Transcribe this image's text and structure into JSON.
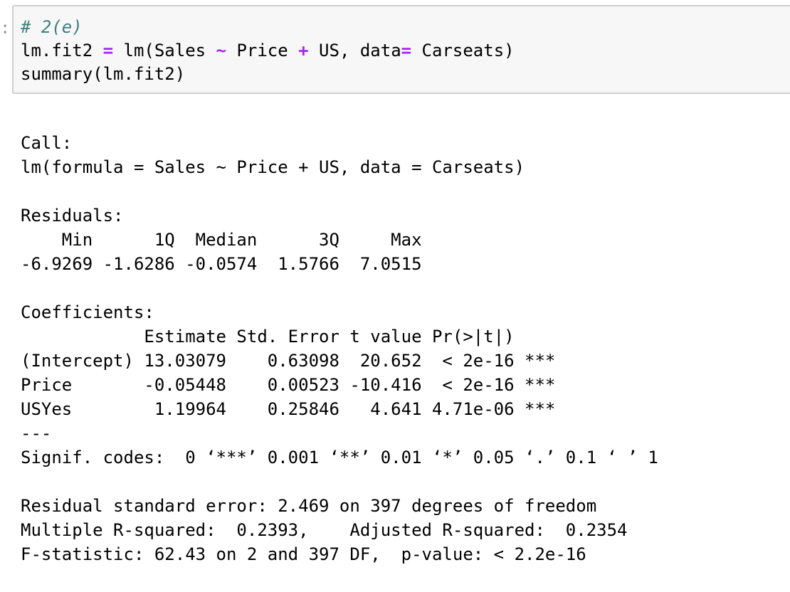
{
  "input_cell": {
    "prompt_marker": ":",
    "comment": "# 2(e)",
    "line2": [
      {
        "text": "lm.fit2 ",
        "kind": "plain"
      },
      {
        "text": "=",
        "kind": "op"
      },
      {
        "text": " lm(Sales ",
        "kind": "plain"
      },
      {
        "text": "~",
        "kind": "op"
      },
      {
        "text": " Price ",
        "kind": "plain"
      },
      {
        "text": "+",
        "kind": "op"
      },
      {
        "text": " US, data",
        "kind": "plain"
      },
      {
        "text": "=",
        "kind": "op"
      },
      {
        "text": " Carseats)",
        "kind": "plain"
      }
    ],
    "line3": "summary(lm.fit2)"
  },
  "output": {
    "call_header": "Call:",
    "call_formula": "lm(formula = Sales ~ Price + US, data = Carseats)",
    "residuals_header": "Residuals:",
    "residuals_labels_row": "    Min      1Q  Median      3Q     Max ",
    "residuals_values_row": "-6.9269 -1.6286 -0.0574  1.5766  7.0515 ",
    "coefficients_header": "Coefficients:",
    "coef_column_header": "            Estimate Std. Error t value Pr(>|t|)    ",
    "coef_rows": [
      "(Intercept) 13.03079    0.63098  20.652  < 2e-16 ***",
      "Price       -0.05448    0.00523 -10.416  < 2e-16 ***",
      "USYes        1.19964    0.25846   4.641 4.71e-06 ***"
    ],
    "separator": "---",
    "signif_codes": "Signif. codes:  0 ‘***’ 0.001 ‘**’ 0.01 ‘*’ 0.05 ‘.’ 0.1 ‘ ’ 1",
    "rse": "Residual standard error: 2.469 on 397 degrees of freedom",
    "r_squared": "Multiple R-squared:  0.2393,    Adjusted R-squared:  0.2354 ",
    "f_statistic": "F-statistic: 62.43 on 2 and 397 DF,  p-value: < 2.2e-16"
  }
}
